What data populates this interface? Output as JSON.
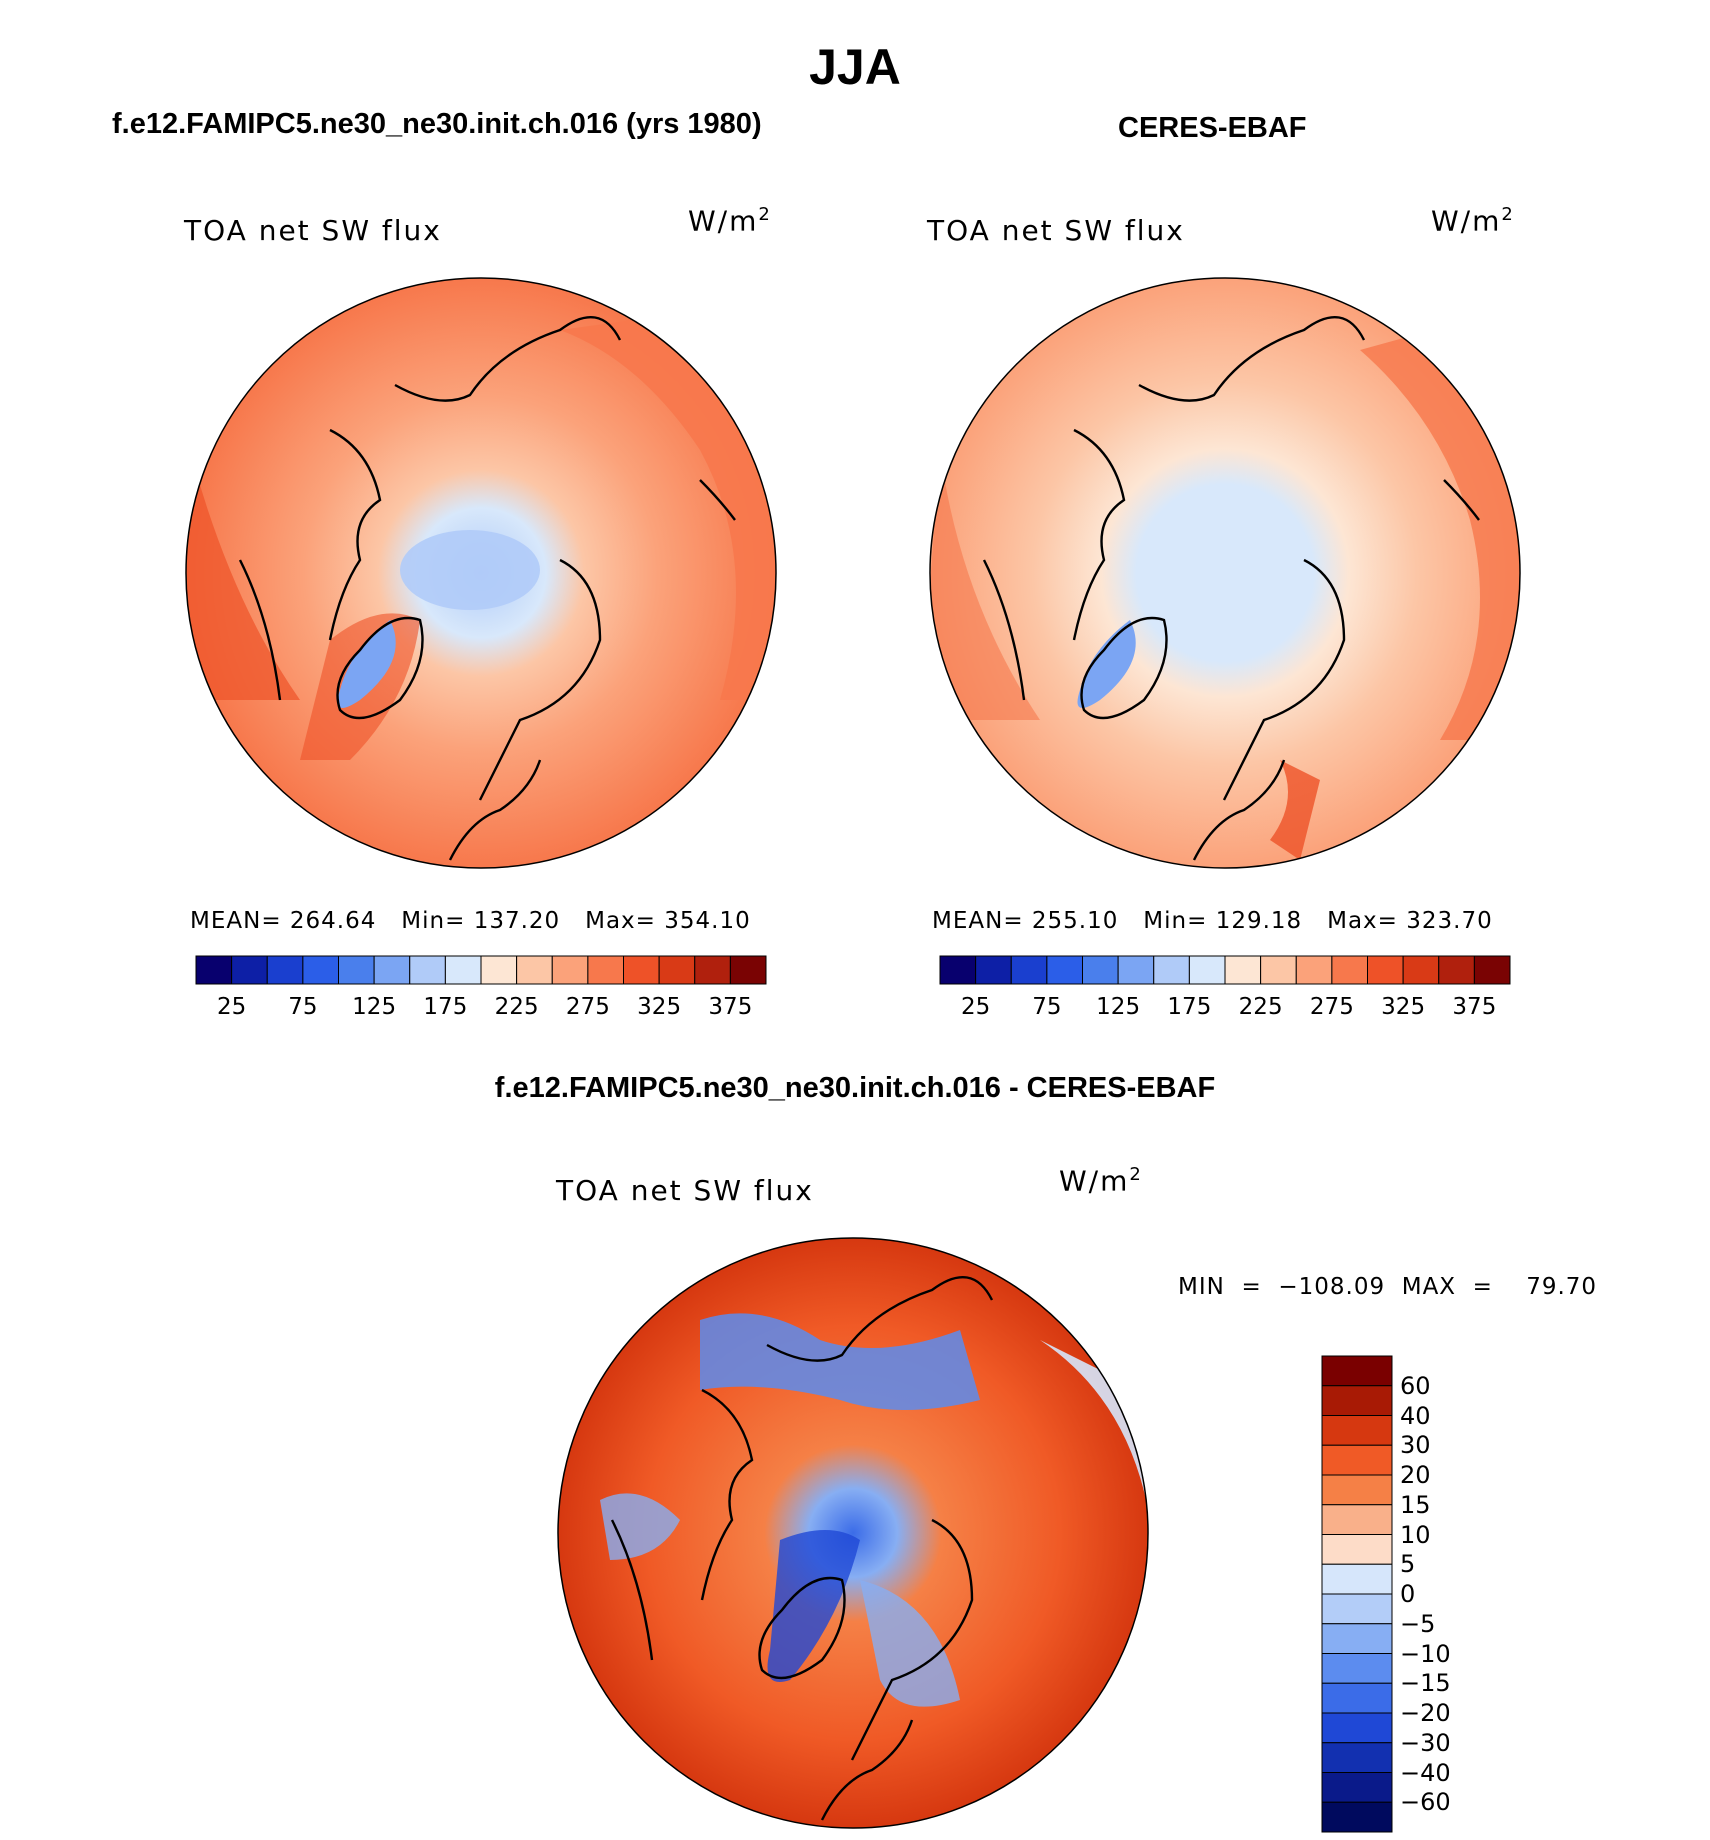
{
  "figure": {
    "main_title": "JJA",
    "left_title": "f.e12.FAMIPC5.ne30_ne30.init.ch.016 (yrs 1980)",
    "right_title": "CERES-EBAF",
    "diff_title": "f.e12.FAMIPC5.ne30_ne30.init.ch.016 - CERES-EBAF"
  },
  "panels": {
    "left": {
      "var": "TOA net SW flux",
      "units": "W/m",
      "units_sup": "2",
      "stats": "MEAN= 264.64   Min= 137.20   Max= 354.10"
    },
    "right": {
      "var": "TOA net SW flux",
      "units": "W/m",
      "units_sup": "2",
      "stats": "MEAN= 255.10   Min= 129.18   Max= 323.70"
    },
    "diff": {
      "var": "TOA net SW flux",
      "units": "W/m",
      "units_sup": "2",
      "stats": "MIN  =  −108.09  MAX  =    79.70"
    }
  },
  "colors": {
    "abs_colors": [
      "#08006e",
      "#0d1fa6",
      "#1a3fcf",
      "#2b5ee8",
      "#4a7fec",
      "#7ba5f3",
      "#b0cbf8",
      "#d8e8fb",
      "#fde6d4",
      "#fcc6a6",
      "#fba27a",
      "#f7784c",
      "#ee5228",
      "#d93a16",
      "#b0200d",
      "#7a0303"
    ],
    "diff_colors": [
      "#7a0000",
      "#a81a05",
      "#d63810",
      "#f05a26",
      "#f58046",
      "#f9b08a",
      "#fddcc8",
      "#d6e6fb",
      "#b3cdf8",
      "#87aef3",
      "#5c8cef",
      "#3b6ce8",
      "#1f48d6",
      "#1230b0",
      "#0a1a8a",
      "#000a5e"
    ]
  },
  "chart_data": [
    {
      "type": "heatmap",
      "title": "TOA net SW flux",
      "subtitle": "f.e12.FAMIPC5.ne30_ne30.init.ch.016 (yrs 1980)",
      "units": "W/m2",
      "stats": {
        "mean": 264.64,
        "min": 137.2,
        "max": 354.1
      },
      "colorbar": {
        "orientation": "horizontal",
        "levels": 16,
        "tick_labels": [
          "25",
          "75",
          "125",
          "175",
          "225",
          "275",
          "325",
          "375"
        ]
      }
    },
    {
      "type": "heatmap",
      "title": "TOA net SW flux",
      "subtitle": "CERES-EBAF",
      "units": "W/m2",
      "stats": {
        "mean": 255.1,
        "min": 129.18,
        "max": 323.7
      },
      "colorbar": {
        "orientation": "horizontal",
        "levels": 16,
        "tick_labels": [
          "25",
          "75",
          "125",
          "175",
          "225",
          "275",
          "325",
          "375"
        ]
      }
    },
    {
      "type": "heatmap",
      "title": "TOA net SW flux",
      "subtitle": "f.e12.FAMIPC5.ne30_ne30.init.ch.016 - CERES-EBAF",
      "units": "W/m2",
      "stats": {
        "min": -108.09,
        "max": 79.7
      },
      "colorbar": {
        "orientation": "vertical",
        "levels": 16,
        "tick_labels": [
          "60",
          "40",
          "30",
          "20",
          "15",
          "10",
          "5",
          "0",
          "−5",
          "−10",
          "−15",
          "−20",
          "−30",
          "−40",
          "−60"
        ]
      }
    }
  ]
}
